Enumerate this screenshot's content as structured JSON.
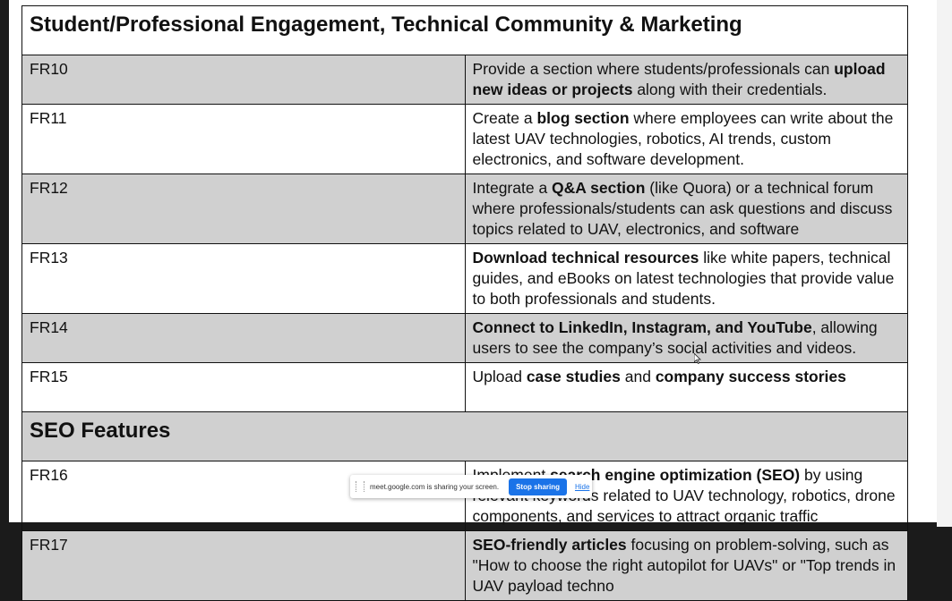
{
  "sections": {
    "top_heading": "Student/Professional Engagement, Technical Community & Marketing",
    "seo_heading": "SEO Features"
  },
  "rows": [
    {
      "id": "FR10",
      "parts": [
        "Provide a section where students/professionals can ",
        "upload new ideas or projects",
        " along with their credentials."
      ]
    },
    {
      "id": "FR11",
      "parts": [
        "Create a ",
        "blog section",
        " where employees can write about the latest UAV technologies, robotics, AI trends, custom electronics, and software development."
      ]
    },
    {
      "id": "FR12",
      "parts": [
        "Integrate a ",
        "Q&A section",
        " (like Quora) or a technical forum where professionals/students can ask questions and discuss topics related to UAV, electronics, and software"
      ]
    },
    {
      "id": "FR13",
      "parts": [
        "",
        "Download technical resources",
        " like white papers, technical guides, and eBooks on latest technologies that provide value to both professionals and students."
      ]
    },
    {
      "id": "FR14",
      "parts": [
        "",
        "Connect to LinkedIn, Instagram, and YouTube",
        ", allowing users to see the company’s social activities and videos."
      ]
    },
    {
      "id": "FR15",
      "parts": [
        "Upload ",
        "case studies",
        " and ",
        "company success stories",
        ""
      ]
    },
    {
      "id": "FR16",
      "parts": [
        "Implement ",
        "search engine optimization (SEO)",
        " by using relevant keywords related to UAV technology, robotics, drone components, and services to attract organic traffic"
      ]
    },
    {
      "id": "FR17",
      "parts": [
        "",
        "SEO-friendly articles",
        " focusing on problem-solving, such as \"How to choose the right autopilot for UAVs\" or \"Top trends in UAV payload techno"
      ]
    }
  ],
  "share_bar": {
    "message": "meet.google.com is sharing your screen.",
    "stop_label": "Stop sharing",
    "hide_label": "Hide"
  },
  "colors": {
    "shaded_row": "#d0d0d0",
    "share_button": "#1a73e8"
  }
}
